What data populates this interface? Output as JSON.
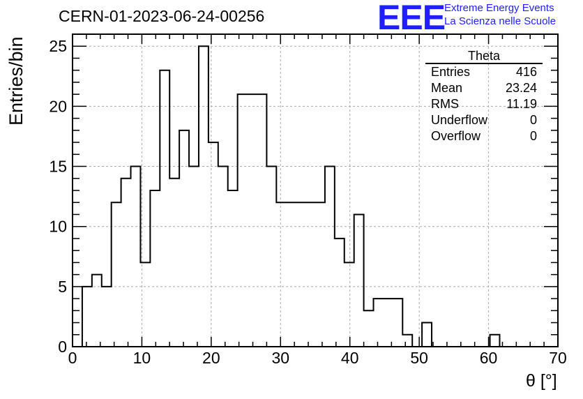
{
  "title": "CERN-01-2023-06-24-00256",
  "logo": {
    "mark": "EEE",
    "line1": "Extreme Energy Events",
    "line2": "La Scienza nelle Scuole",
    "color": "#1f1fff"
  },
  "stats": {
    "name": "Theta",
    "rows": [
      {
        "label": "Entries",
        "value": "416"
      },
      {
        "label": "Mean",
        "value": "23.24"
      },
      {
        "label": "RMS",
        "value": "11.19"
      },
      {
        "label": "Underflow",
        "value": "0"
      },
      {
        "label": "Overflow",
        "value": "0"
      }
    ]
  },
  "chart_data": {
    "type": "histogram",
    "xlabel": "θ [°]",
    "ylabel": "Entries/bin",
    "xlim": [
      0,
      70
    ],
    "ylim": [
      0,
      26
    ],
    "xticks": [
      0,
      10,
      20,
      30,
      40,
      50,
      60,
      70
    ],
    "yticks": [
      0,
      5,
      10,
      15,
      20,
      25
    ],
    "grid": true,
    "line_color": "#000000",
    "bin_width": 1.4,
    "x_start": 0,
    "values": [
      0,
      5,
      6,
      5,
      12,
      14,
      15,
      7,
      13,
      23,
      14,
      18,
      15,
      25,
      17,
      15,
      13,
      21,
      21,
      21,
      15,
      12,
      12,
      12,
      12,
      12,
      15,
      9,
      7,
      11,
      3,
      4,
      4,
      4,
      1,
      0,
      2,
      0,
      0,
      0,
      0,
      0,
      0,
      1,
      0,
      0,
      0,
      0,
      0,
      0
    ]
  }
}
